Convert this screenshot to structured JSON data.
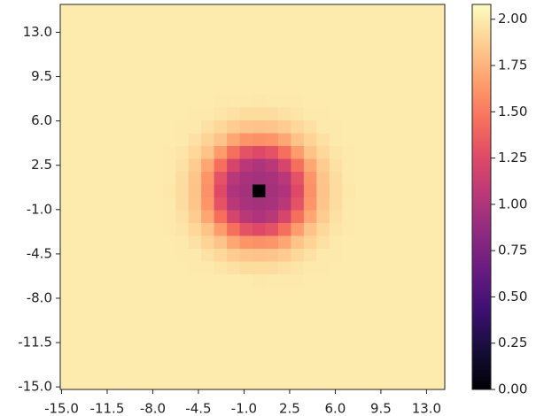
{
  "chart_data": {
    "type": "heatmap",
    "colormap": "magma",
    "xlim": [
      -15.1,
      14.4
    ],
    "ylim": [
      -15.2,
      15.2
    ],
    "clim": [
      0,
      2.08
    ],
    "xticks": [
      {
        "value": -15,
        "label": "-15.0"
      },
      {
        "value": -11.5,
        "label": "-11.5"
      },
      {
        "value": -8,
        "label": "-8.0"
      },
      {
        "value": -4.5,
        "label": "-4.5"
      },
      {
        "value": -1,
        "label": "-1.0"
      },
      {
        "value": 2.5,
        "label": "2.5"
      },
      {
        "value": 6,
        "label": "6.0"
      },
      {
        "value": 9.5,
        "label": "9.5"
      },
      {
        "value": 13,
        "label": "13.0"
      }
    ],
    "yticks": [
      {
        "value": -15,
        "label": "-15.0"
      },
      {
        "value": -11.5,
        "label": "-11.5"
      },
      {
        "value": -8,
        "label": "-8.0"
      },
      {
        "value": -4.5,
        "label": "-4.5"
      },
      {
        "value": -1,
        "label": "-1.0"
      },
      {
        "value": 2.5,
        "label": "2.5"
      },
      {
        "value": 6,
        "label": "6.0"
      },
      {
        "value": 9.5,
        "label": "9.5"
      },
      {
        "value": 13,
        "label": "13.0"
      }
    ],
    "cticks": [
      {
        "value": 0,
        "label": "0.00"
      },
      {
        "value": 0.25,
        "label": "0.25"
      },
      {
        "value": 0.5,
        "label": "0.50"
      },
      {
        "value": 0.75,
        "label": "0.75"
      },
      {
        "value": 1,
        "label": "1.00"
      },
      {
        "value": 1.25,
        "label": "1.25"
      },
      {
        "value": 1.5,
        "label": "1.50"
      },
      {
        "value": 1.75,
        "label": "1.75"
      },
      {
        "value": 2,
        "label": "2.00"
      }
    ],
    "z": [
      [
        2,
        2,
        2,
        2,
        2,
        2,
        2,
        2,
        2,
        2,
        2,
        2,
        2,
        2,
        2,
        2,
        2,
        2,
        2,
        2,
        2,
        2,
        2,
        2,
        2,
        2,
        2,
        2,
        2,
        2
      ],
      [
        2,
        2,
        2,
        2,
        2,
        2,
        2,
        2,
        2,
        2,
        2,
        2,
        2,
        2,
        2,
        2,
        2,
        2,
        2,
        2,
        2,
        2,
        2,
        2,
        2,
        2,
        2,
        2,
        2,
        2
      ],
      [
        2,
        2,
        2,
        2,
        2,
        2,
        2,
        2,
        2,
        2,
        2,
        2,
        2,
        2,
        2,
        2,
        2,
        2,
        2,
        2,
        2,
        2,
        2,
        2,
        2,
        2,
        2,
        2,
        2,
        2
      ],
      [
        2,
        2,
        2,
        2,
        2,
        2,
        2,
        2,
        2,
        2,
        2,
        2,
        2,
        2,
        2,
        2,
        2,
        2,
        2,
        2,
        2,
        2,
        2,
        2,
        2,
        2,
        2,
        2,
        2,
        2
      ],
      [
        2,
        2,
        2,
        2,
        2,
        2,
        2,
        2,
        2,
        2,
        2,
        2,
        2,
        2,
        2,
        2,
        2,
        2,
        2,
        2,
        2,
        2,
        2,
        2,
        2,
        2,
        2,
        2,
        2,
        2
      ],
      [
        2,
        2,
        2,
        2,
        2,
        2,
        2,
        2,
        2,
        2,
        2,
        2,
        2,
        2,
        2,
        2,
        2,
        2,
        2,
        2,
        2,
        2,
        2,
        2,
        2,
        2,
        2,
        2,
        2,
        2
      ],
      [
        2,
        2,
        2,
        2,
        2,
        2,
        2,
        2,
        2,
        2,
        2,
        2,
        2,
        2,
        2,
        2,
        2,
        2,
        2,
        2,
        2,
        2,
        2,
        2,
        2,
        2,
        2,
        2,
        2,
        2
      ],
      [
        2,
        2,
        2,
        2,
        2,
        2,
        2,
        2,
        2,
        2,
        2,
        2,
        2,
        2,
        2,
        2,
        2,
        2,
        2,
        2,
        2,
        2,
        2,
        2,
        2,
        2,
        2,
        2,
        2,
        2
      ],
      [
        2,
        2,
        2,
        2,
        2,
        2,
        2,
        2,
        2,
        2,
        2,
        2,
        2,
        2,
        2,
        1.98,
        1.99,
        1.99,
        1.99,
        2,
        2,
        2,
        2,
        2,
        2,
        2,
        2,
        2,
        2,
        2
      ],
      [
        2,
        2,
        2,
        2,
        2,
        2,
        2,
        2,
        2,
        2,
        1.99,
        1.99,
        1.97,
        1.95,
        1.93,
        1.93,
        1.93,
        1.95,
        1.97,
        1.99,
        1.99,
        2,
        2,
        2,
        2,
        2,
        2,
        2,
        2,
        2
      ],
      [
        2,
        2,
        2,
        2,
        2,
        2,
        2,
        2,
        2,
        1.99,
        1.99,
        1.95,
        1.91,
        1.86,
        1.83,
        1.82,
        1.83,
        1.86,
        1.91,
        1.95,
        1.99,
        1.99,
        2,
        2,
        2,
        2,
        2,
        2,
        2,
        2
      ],
      [
        2,
        2,
        2,
        2,
        2,
        2,
        2,
        2,
        2,
        1.99,
        1.95,
        1.89,
        1.82,
        1.7,
        1.62,
        1.6,
        1.62,
        1.7,
        1.82,
        1.89,
        1.95,
        1.99,
        2,
        2,
        2,
        2,
        2,
        2,
        2,
        2
      ],
      [
        2,
        2,
        2,
        2,
        2,
        2,
        2,
        2,
        1.99,
        1.97,
        1.91,
        1.82,
        1.65,
        1.45,
        1.3,
        1.25,
        1.3,
        1.45,
        1.65,
        1.82,
        1.91,
        1.97,
        1.99,
        2,
        2,
        2,
        2,
        2,
        2,
        2
      ],
      [
        2,
        2,
        2,
        2,
        2,
        2,
        2,
        2,
        1.99,
        1.95,
        1.86,
        1.7,
        1.45,
        1.2,
        1.05,
        1,
        1.05,
        1.2,
        1.45,
        1.7,
        1.86,
        1.95,
        1.99,
        2,
        2,
        2,
        2,
        2,
        2,
        2
      ],
      [
        2,
        2,
        2,
        2,
        2,
        2,
        2,
        2,
        1.99,
        1.93,
        1.83,
        1.62,
        1.3,
        1.05,
        0.97,
        0.95,
        0.97,
        1.05,
        1.3,
        1.62,
        1.83,
        1.93,
        1.99,
        2,
        2,
        2,
        2,
        2,
        2,
        2
      ],
      [
        2,
        2,
        2,
        2,
        2,
        2,
        2,
        2,
        1.98,
        1.93,
        1.82,
        1.6,
        1.25,
        1,
        0.95,
        0,
        0.95,
        1,
        1.25,
        1.6,
        1.82,
        1.93,
        1.98,
        2,
        2,
        2,
        2,
        2,
        2,
        2
      ],
      [
        2,
        2,
        2,
        2,
        2,
        2,
        2,
        2,
        1.99,
        1.93,
        1.83,
        1.62,
        1.3,
        1.05,
        0.97,
        0.95,
        0.97,
        1.05,
        1.3,
        1.62,
        1.83,
        1.93,
        1.99,
        2,
        2,
        2,
        2,
        2,
        2,
        2
      ],
      [
        2,
        2,
        2,
        2,
        2,
        2,
        2,
        2,
        1.99,
        1.95,
        1.86,
        1.7,
        1.45,
        1.2,
        1.05,
        1,
        1.05,
        1.2,
        1.45,
        1.7,
        1.86,
        1.95,
        1.99,
        2,
        2,
        2,
        2,
        2,
        2,
        2
      ],
      [
        2,
        2,
        2,
        2,
        2,
        2,
        2,
        2,
        1.99,
        1.97,
        1.91,
        1.82,
        1.65,
        1.45,
        1.3,
        1.25,
        1.3,
        1.45,
        1.65,
        1.82,
        1.91,
        1.97,
        1.99,
        2,
        2,
        2,
        2,
        2,
        2,
        2
      ],
      [
        2,
        2,
        2,
        2,
        2,
        2,
        2,
        2,
        2,
        1.99,
        1.95,
        1.89,
        1.82,
        1.7,
        1.62,
        1.6,
        1.62,
        1.7,
        1.82,
        1.89,
        1.95,
        1.99,
        2,
        2,
        2,
        2,
        2,
        2,
        2,
        2
      ],
      [
        2,
        2,
        2,
        2,
        2,
        2,
        2,
        2,
        2,
        1.99,
        1.99,
        1.95,
        1.91,
        1.86,
        1.83,
        1.82,
        1.83,
        1.86,
        1.91,
        1.95,
        1.99,
        1.99,
        2,
        2,
        2,
        2,
        2,
        2,
        2,
        2
      ],
      [
        2,
        2,
        2,
        2,
        2,
        2,
        2,
        2,
        2,
        2,
        1.99,
        1.99,
        1.97,
        1.95,
        1.93,
        1.93,
        1.93,
        1.95,
        1.97,
        1.99,
        1.99,
        2,
        2,
        2,
        2,
        2,
        2,
        2,
        2,
        2
      ],
      [
        2,
        2,
        2,
        2,
        2,
        2,
        2,
        2,
        2,
        2,
        2,
        2,
        1.99,
        1.99,
        1.99,
        1.98,
        1.99,
        1.99,
        1.99,
        2,
        2,
        2,
        2,
        2,
        2,
        2,
        2,
        2,
        2,
        2
      ],
      [
        2,
        2,
        2,
        2,
        2,
        2,
        2,
        2,
        2,
        2,
        2,
        2,
        2,
        2,
        2,
        2,
        2,
        2,
        2,
        2,
        2,
        2,
        2,
        2,
        2,
        2,
        2,
        2,
        2,
        2
      ],
      [
        2,
        2,
        2,
        2,
        2,
        2,
        2,
        2,
        2,
        2,
        2,
        2,
        2,
        2,
        2,
        2,
        2,
        2,
        2,
        2,
        2,
        2,
        2,
        2,
        2,
        2,
        2,
        2,
        2,
        2
      ],
      [
        2,
        2,
        2,
        2,
        2,
        2,
        2,
        2,
        2,
        2,
        2,
        2,
        2,
        2,
        2,
        2,
        2,
        2,
        2,
        2,
        2,
        2,
        2,
        2,
        2,
        2,
        2,
        2,
        2,
        2
      ],
      [
        2,
        2,
        2,
        2,
        2,
        2,
        2,
        2,
        2,
        2,
        2,
        2,
        2,
        2,
        2,
        2,
        2,
        2,
        2,
        2,
        2,
        2,
        2,
        2,
        2,
        2,
        2,
        2,
        2,
        2
      ],
      [
        2,
        2,
        2,
        2,
        2,
        2,
        2,
        2,
        2,
        2,
        2,
        2,
        2,
        2,
        2,
        2,
        2,
        2,
        2,
        2,
        2,
        2,
        2,
        2,
        2,
        2,
        2,
        2,
        2,
        2
      ],
      [
        2,
        2,
        2,
        2,
        2,
        2,
        2,
        2,
        2,
        2,
        2,
        2,
        2,
        2,
        2,
        2,
        2,
        2,
        2,
        2,
        2,
        2,
        2,
        2,
        2,
        2,
        2,
        2,
        2,
        2
      ],
      [
        2,
        2,
        2,
        2,
        2,
        2,
        2,
        2,
        2,
        2,
        2,
        2,
        2,
        2,
        2,
        2,
        2,
        2,
        2,
        2,
        2,
        2,
        2,
        2,
        2,
        2,
        2,
        2,
        2,
        2
      ]
    ]
  }
}
